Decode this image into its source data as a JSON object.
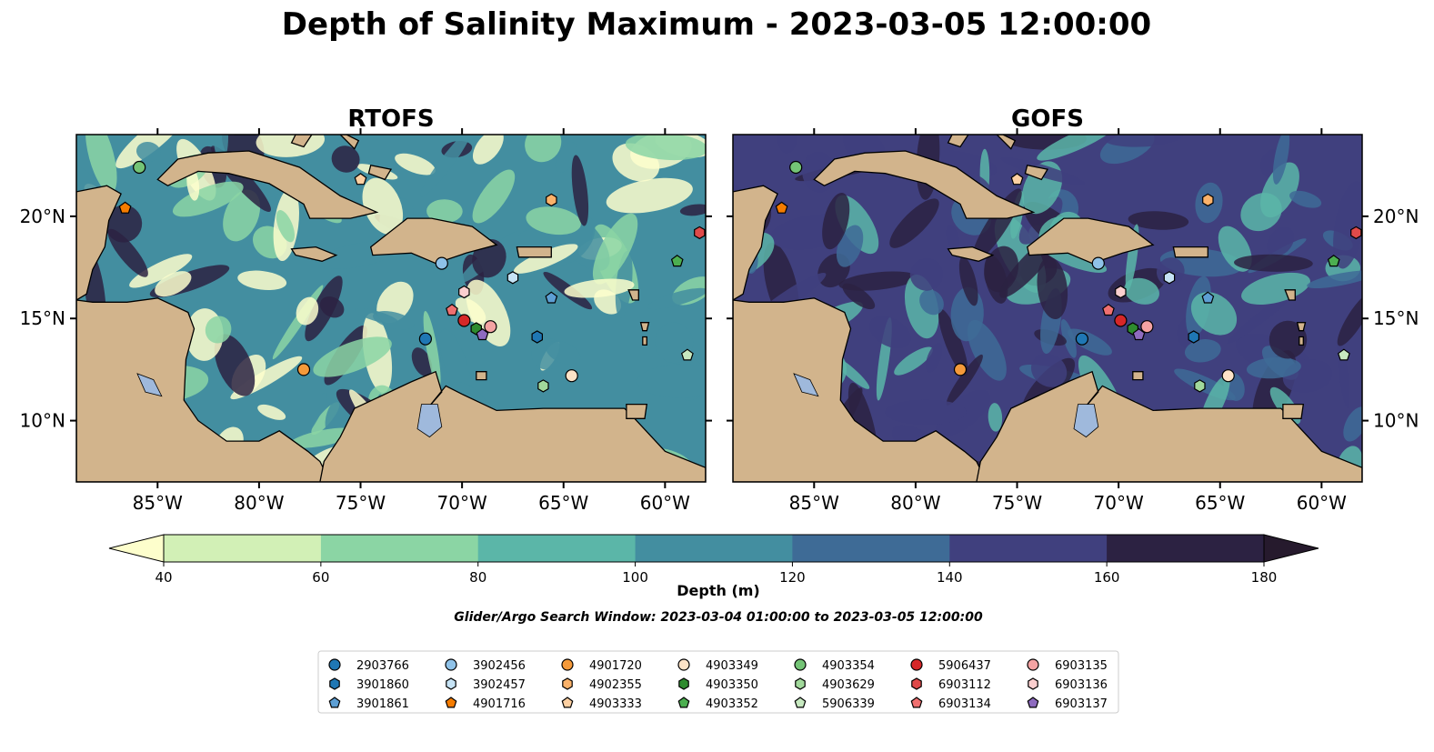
{
  "title": "Depth of Salinity Maximum - 2023-03-05 12:00:00",
  "search_window": "Glider/Argo Search Window: 2023-03-04 01:00:00 to 2023-03-05 12:00:00",
  "colorbar": {
    "label": "Depth (m)",
    "ticks": [
      "40",
      "60",
      "80",
      "100",
      "120",
      "140",
      "160",
      "180"
    ],
    "colors": [
      "#fdfecc",
      "#d2f0b6",
      "#8bd5a4",
      "#5bb6a8",
      "#438ea0",
      "#3e6b96",
      "#40407e",
      "#2c2242",
      "#261a2d"
    ]
  },
  "land_color": "#d2b48c",
  "lake_color": "#9fb9dc",
  "chart_data": [
    {
      "type": "heatmap",
      "title": "RTOFS",
      "xlim": [
        -89,
        -58
      ],
      "ylim": [
        7,
        24
      ],
      "x_ticks": [
        "85°W",
        "80°W",
        "75°W",
        "70°W",
        "65°W",
        "60°W"
      ],
      "y_ticks": [
        "20°N",
        "15°N",
        "10°N"
      ],
      "dominant_colors": [
        "#fdfecc",
        "#8bd5a4",
        "#438ea0",
        "#2c2242"
      ]
    },
    {
      "type": "heatmap",
      "title": "GOFS",
      "xlim": [
        -89,
        -58
      ],
      "ylim": [
        7,
        24
      ],
      "x_ticks": [
        "85°W",
        "80°W",
        "75°W",
        "70°W",
        "65°W",
        "60°W"
      ],
      "y_ticks": [
        "20°N",
        "15°N",
        "10°N"
      ],
      "dominant_colors": [
        "#3e6b96",
        "#40407e",
        "#2c2242",
        "#5bb6a8"
      ]
    }
  ],
  "floats": [
    {
      "id": "2903766",
      "color": "#1f77b4",
      "marker": "circle",
      "lon": -71.8,
      "lat": 14.0
    },
    {
      "id": "3901860",
      "color": "#1f77b4",
      "marker": "hexagon",
      "lon": -66.3,
      "lat": 14.1
    },
    {
      "id": "3901861",
      "color": "#5d9fd4",
      "marker": "pentagon",
      "lon": -65.6,
      "lat": 16.0
    },
    {
      "id": "3902456",
      "color": "#8fc2e8",
      "marker": "circle",
      "lon": -71.0,
      "lat": 17.7
    },
    {
      "id": "3902457",
      "color": "#c6e3f5",
      "marker": "hexagon",
      "lon": -67.5,
      "lat": 17.0
    },
    {
      "id": "4901716",
      "color": "#f57c00",
      "marker": "pentagon",
      "lon": -86.6,
      "lat": 20.4
    },
    {
      "id": "4901720",
      "color": "#f59a3a",
      "marker": "circle",
      "lon": -77.8,
      "lat": 12.5
    },
    {
      "id": "4902355",
      "color": "#fbb26a",
      "marker": "hexagon",
      "lon": -65.6,
      "lat": 20.8
    },
    {
      "id": "4903333",
      "color": "#fdd0a2",
      "marker": "pentagon",
      "lon": -75.0,
      "lat": 21.8
    },
    {
      "id": "4903349",
      "color": "#fde3c7",
      "marker": "circle",
      "lon": -64.6,
      "lat": 12.2
    },
    {
      "id": "4903350",
      "color": "#2e8b2e",
      "marker": "hexagon",
      "lon": -69.3,
      "lat": 14.5
    },
    {
      "id": "4903352",
      "color": "#4caf50",
      "marker": "pentagon",
      "lon": -59.4,
      "lat": 17.8
    },
    {
      "id": "4903354",
      "color": "#74c476",
      "marker": "circle",
      "lon": -85.9,
      "lat": 22.4
    },
    {
      "id": "4903629",
      "color": "#a1d99b",
      "marker": "hexagon",
      "lon": -66.0,
      "lat": 11.7
    },
    {
      "id": "5906339",
      "color": "#c7e9c0",
      "marker": "pentagon",
      "lon": -58.9,
      "lat": 13.2
    },
    {
      "id": "5906437",
      "color": "#d62728",
      "marker": "circle",
      "lon": -69.9,
      "lat": 14.9
    },
    {
      "id": "6903112",
      "color": "#e04a4a",
      "marker": "hexagon",
      "lon": -58.3,
      "lat": 19.2
    },
    {
      "id": "6903134",
      "color": "#f07070",
      "marker": "pentagon",
      "lon": -70.5,
      "lat": 15.4
    },
    {
      "id": "6903135",
      "color": "#f4a3a3",
      "marker": "circle",
      "lon": -68.6,
      "lat": 14.6
    },
    {
      "id": "6903136",
      "color": "#fbcfcf",
      "marker": "hexagon",
      "lon": -69.9,
      "lat": 16.3
    },
    {
      "id": "6903137",
      "color": "#8e6bbf",
      "marker": "pentagon",
      "lon": -69.0,
      "lat": 14.2
    }
  ]
}
